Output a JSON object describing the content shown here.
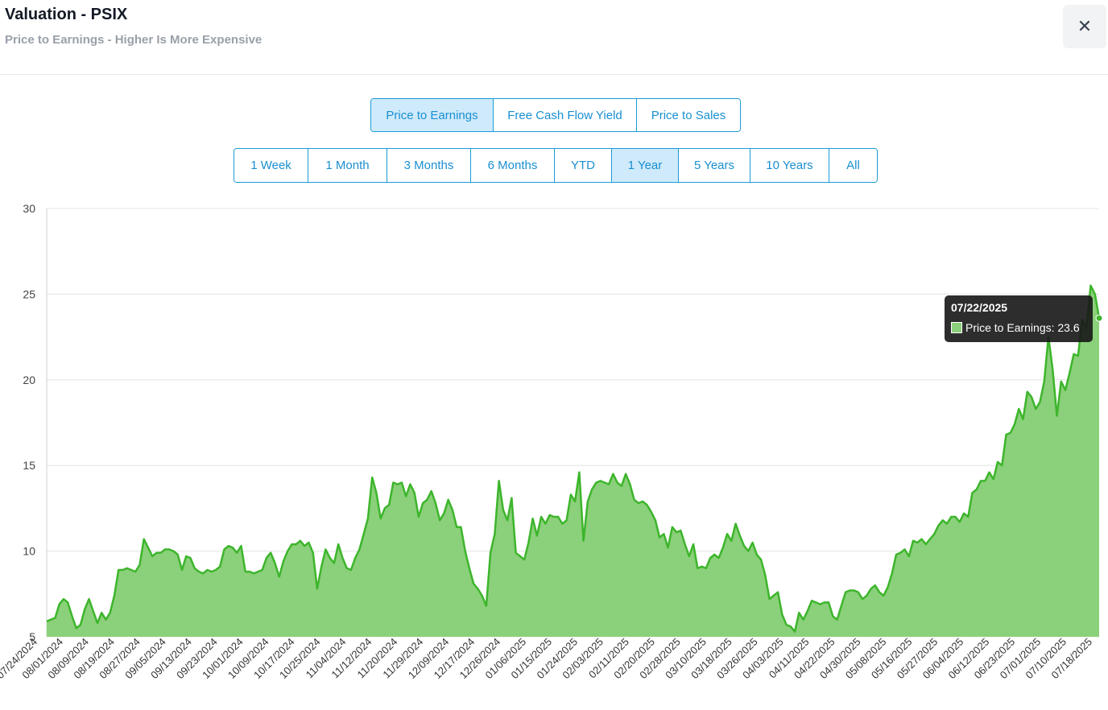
{
  "header": {
    "title": "Valuation - PSIX",
    "subtitle": "Price to Earnings - Higher Is More Expensive",
    "close_label": "✕"
  },
  "metric_tabs": [
    {
      "label": "Price to Earnings",
      "active": true
    },
    {
      "label": "Free Cash Flow Yield",
      "active": false
    },
    {
      "label": "Price to Sales",
      "active": false
    }
  ],
  "range_tabs": [
    {
      "label": "1 Week",
      "active": false
    },
    {
      "label": "1 Month",
      "active": false
    },
    {
      "label": "3 Months",
      "active": false
    },
    {
      "label": "6 Months",
      "active": false
    },
    {
      "label": "YTD",
      "active": false
    },
    {
      "label": "1 Year",
      "active": true
    },
    {
      "label": "5 Years",
      "active": false
    },
    {
      "label": "10 Years",
      "active": false
    },
    {
      "label": "All",
      "active": false
    }
  ],
  "tooltip": {
    "date": "07/22/2025",
    "label": "Price to Earnings: 23.6"
  },
  "colors": {
    "accent": "#1a9bd7",
    "active_tab_bg": "#cfeafb",
    "series_fill": "#8bd07a",
    "series_line": "#3db52c"
  },
  "chart_data": {
    "type": "area",
    "ylim": [
      5,
      30
    ],
    "yticks": [
      5,
      10,
      15,
      20,
      25,
      30
    ],
    "grid": true,
    "x_tick_labels": [
      "07/24/2024",
      "08/01/2024",
      "08/09/2024",
      "08/19/2024",
      "08/27/2024",
      "09/05/2024",
      "09/13/2024",
      "09/23/2024",
      "10/01/2024",
      "10/09/2024",
      "10/17/2024",
      "10/25/2024",
      "11/04/2024",
      "11/12/2024",
      "11/20/2024",
      "11/29/2024",
      "12/09/2024",
      "12/17/2024",
      "12/26/2024",
      "01/06/2025",
      "01/15/2025",
      "01/24/2025",
      "02/03/2025",
      "02/11/2025",
      "02/20/2025",
      "02/28/2025",
      "03/10/2025",
      "03/18/2025",
      "03/26/2025",
      "04/03/2025",
      "04/11/2025",
      "04/22/2025",
      "04/30/2025",
      "05/08/2025",
      "05/16/2025",
      "05/27/2025",
      "06/04/2025",
      "06/12/2025",
      "06/23/2025",
      "07/01/2025",
      "07/10/2025",
      "07/18/2025"
    ],
    "series": [
      {
        "values": [
          5.9,
          6.0,
          6.1,
          6.9,
          7.2,
          7.0,
          6.2,
          5.5,
          5.7,
          6.6,
          7.2,
          6.5,
          5.8,
          6.4,
          6.0,
          6.4,
          7.4,
          8.9,
          8.9,
          9.0,
          8.9,
          8.8,
          9.2,
          10.7,
          10.2,
          9.7,
          9.9,
          9.9,
          10.1,
          10.1,
          10.0,
          9.8,
          8.9,
          9.7,
          9.6,
          9.0,
          8.8,
          8.7,
          8.9,
          8.8,
          8.9,
          9.1,
          10.1,
          10.3,
          10.2,
          9.9,
          10.3,
          8.8,
          8.8,
          8.7,
          8.8,
          8.9,
          9.6,
          9.9,
          9.3,
          8.5,
          9.4,
          10.0,
          10.4,
          10.4,
          10.6,
          10.3,
          10.5,
          9.9,
          7.8,
          9.1,
          10.1,
          9.6,
          9.3,
          10.4,
          9.6,
          9.0,
          8.9,
          9.6,
          10.1,
          11.0,
          11.9,
          14.3,
          13.4,
          11.9,
          12.5,
          12.7,
          14.0,
          13.9,
          14.0,
          13.2,
          13.9,
          13.4,
          12.0,
          12.8,
          13.0,
          13.5,
          12.8,
          11.8,
          12.2,
          13.0,
          12.4,
          11.4,
          11.4,
          10.0,
          9.0,
          8.1,
          7.8,
          7.4,
          6.8,
          9.9,
          11.0,
          14.1,
          12.4,
          11.8,
          13.1,
          9.9,
          9.7,
          9.5,
          10.5,
          11.9,
          10.9,
          12.0,
          11.6,
          12.1,
          12.0,
          12.0,
          11.6,
          11.8,
          13.3,
          12.9,
          14.6,
          10.6,
          12.9,
          13.6,
          14.0,
          14.1,
          14.0,
          13.9,
          14.5,
          14.0,
          13.8,
          14.5,
          13.9,
          13.0,
          12.8,
          12.9,
          12.7,
          12.3,
          11.8,
          10.8,
          11.0,
          10.2,
          11.4,
          11.1,
          11.2,
          10.4,
          9.7,
          10.4,
          9.0,
          9.1,
          9.0,
          9.6,
          9.8,
          9.6,
          10.2,
          11.0,
          10.6,
          11.6,
          10.9,
          10.3,
          10.0,
          10.5,
          9.8,
          9.5,
          8.6,
          7.2,
          7.4,
          7.6,
          6.3,
          5.7,
          5.6,
          5.3,
          6.4,
          6.0,
          6.5,
          7.1,
          7.0,
          6.9,
          7.0,
          7.0,
          6.2,
          6.0,
          6.8,
          7.6,
          7.7,
          7.7,
          7.6,
          7.2,
          7.4,
          7.8,
          8.0,
          7.6,
          7.4,
          7.9,
          8.7,
          9.8,
          9.9,
          10.1,
          9.7,
          10.6,
          10.5,
          10.7,
          10.4,
          10.7,
          11.0,
          11.5,
          11.8,
          11.6,
          12.0,
          12.0,
          11.7,
          12.2,
          12.0,
          13.4,
          13.6,
          14.1,
          14.1,
          14.6,
          14.2,
          15.2,
          15.0,
          16.8,
          16.9,
          17.4,
          18.3,
          17.7,
          19.3,
          19.0,
          18.3,
          18.7,
          19.9,
          22.5,
          20.6,
          17.9,
          19.9,
          19.4,
          20.4,
          21.5,
          21.4,
          23.5,
          23.0,
          25.5,
          25.0,
          23.6
        ]
      }
    ]
  }
}
